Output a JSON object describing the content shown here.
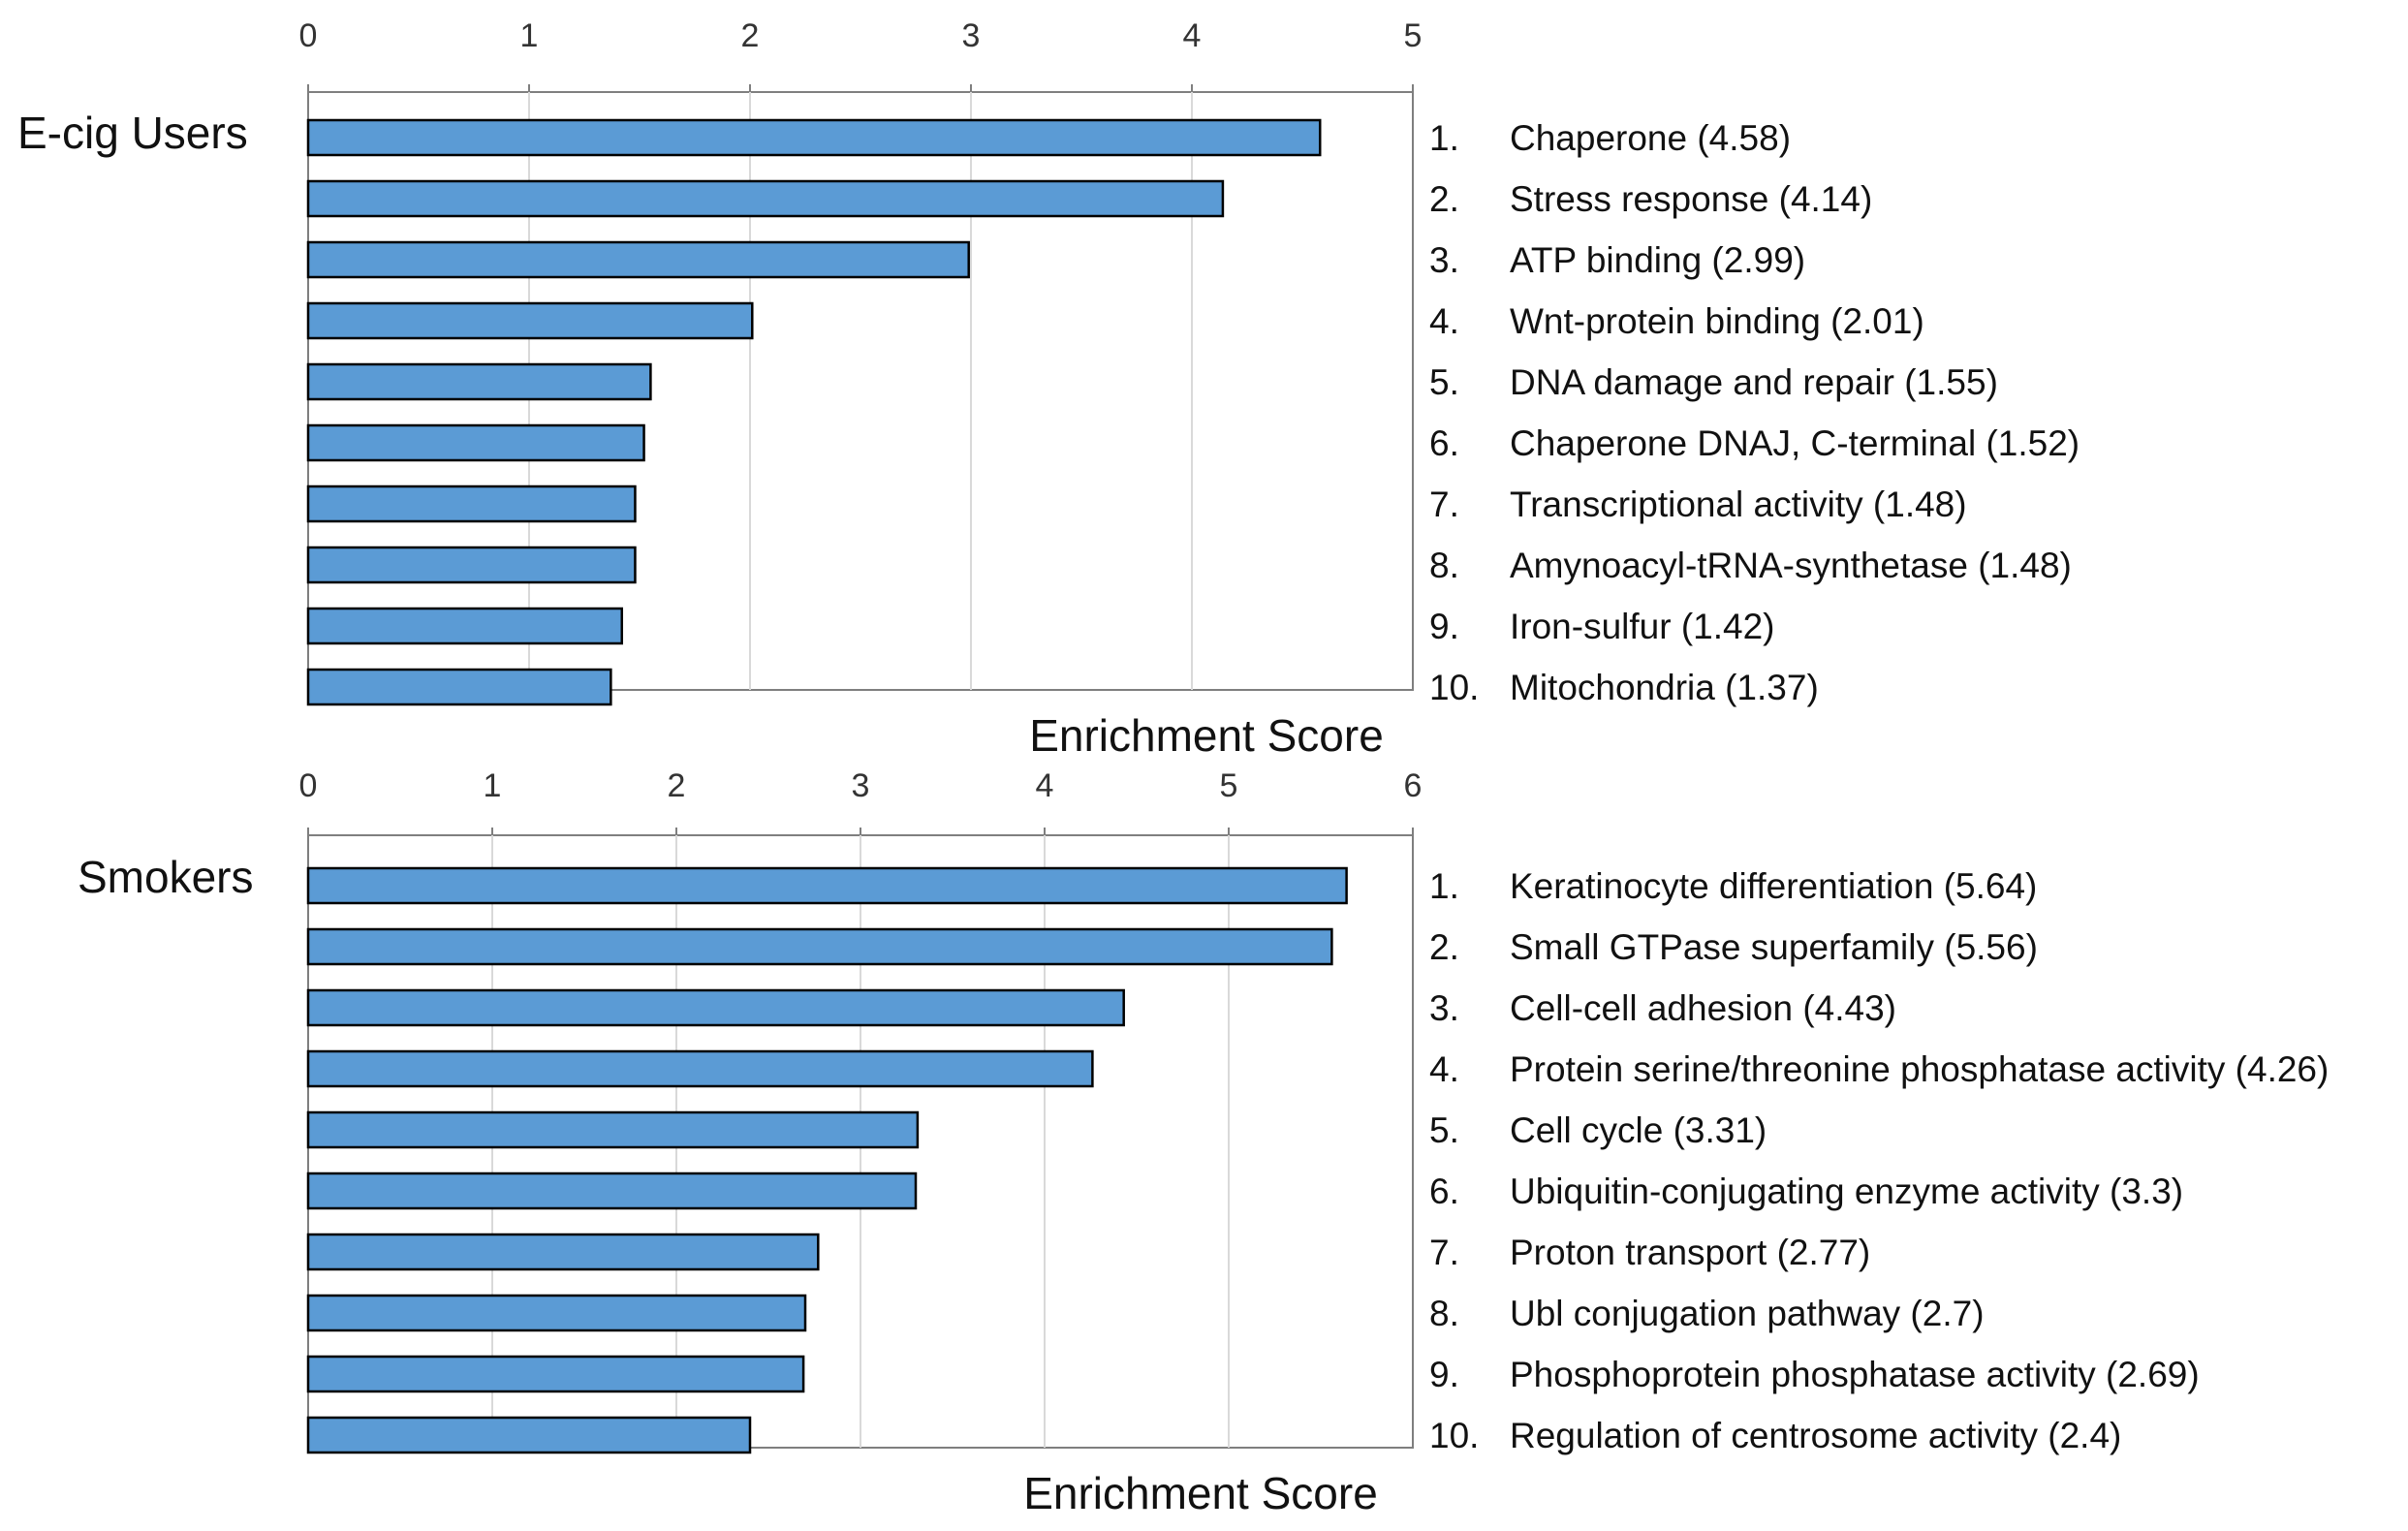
{
  "chart_data": [
    {
      "type": "bar",
      "orientation": "horizontal",
      "group_label": "E-cig Users",
      "xlabel": "Enrichment Score",
      "xlim": [
        0,
        5
      ],
      "x_ticks": [
        "0",
        "1",
        "2",
        "3",
        "4",
        "5"
      ],
      "grid": true,
      "bar_color": "#5b9bd5",
      "values": [
        4.58,
        4.14,
        2.99,
        2.01,
        1.55,
        1.52,
        1.48,
        1.48,
        1.42,
        1.37
      ],
      "legend": [
        {
          "num": "1.",
          "text": "Chaperone (4.58)"
        },
        {
          "num": "2.",
          "text": "Stress response (4.14)"
        },
        {
          "num": "3.",
          "text": "ATP binding (2.99)"
        },
        {
          "num": "4.",
          "text": "Wnt-protein binding (2.01)"
        },
        {
          "num": "5.",
          "text": "DNA damage and repair (1.55)"
        },
        {
          "num": "6.",
          "text": "Chaperone DNAJ, C-terminal (1.52)"
        },
        {
          "num": "7.",
          "text": "Transcriptional activity (1.48)"
        },
        {
          "num": "8.",
          "text": "Amynoacyl-tRNA-synthetase (1.48)"
        },
        {
          "num": "9.",
          "text": "Iron-sulfur (1.42)"
        },
        {
          "num": "10.",
          "text": "Mitochondria (1.37)"
        }
      ]
    },
    {
      "type": "bar",
      "orientation": "horizontal",
      "group_label": "Smokers",
      "xlabel": "Enrichment Score",
      "xlim": [
        0,
        6
      ],
      "x_ticks": [
        "0",
        "1",
        "2",
        "3",
        "4",
        "5",
        "6"
      ],
      "grid": true,
      "bar_color": "#5b9bd5",
      "values": [
        5.64,
        5.56,
        4.43,
        4.26,
        3.31,
        3.3,
        2.77,
        2.7,
        2.69,
        2.4
      ],
      "legend": [
        {
          "num": "1.",
          "text": "Keratinocyte differentiation (5.64)"
        },
        {
          "num": "2.",
          "text": "Small GTPase superfamily (5.56)"
        },
        {
          "num": "3.",
          "text": "Cell-cell adhesion (4.43)"
        },
        {
          "num": "4.",
          "text": "Protein serine/threonine phosphatase activity (4.26)"
        },
        {
          "num": "5.",
          "text": "Cell cycle (3.31)"
        },
        {
          "num": "6.",
          "text": "Ubiquitin-conjugating enzyme activity (3.3)"
        },
        {
          "num": "7.",
          "text": "Proton transport (2.77)"
        },
        {
          "num": "8.",
          "text": "Ubl conjugation pathway (2.7)"
        },
        {
          "num": "9.",
          "text": "Phosphoprotein phosphatase activity (2.69)"
        },
        {
          "num": "10.",
          "text": "Regulation of centrosome activity (2.4)"
        }
      ]
    }
  ]
}
